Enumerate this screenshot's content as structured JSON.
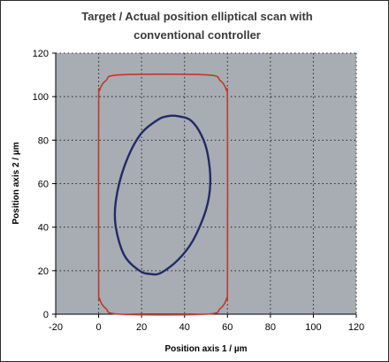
{
  "chart_data": {
    "type": "line",
    "title_lines": [
      "Target / Actual position elliptical scan with",
      "conventional controller"
    ],
    "xlabel": "Position axis 1 / µm",
    "ylabel": "Position axis 2 / µm",
    "xlim": [
      -20,
      120
    ],
    "ylim": [
      0,
      120
    ],
    "xticks": [
      -20,
      0,
      20,
      40,
      60,
      80,
      100,
      120
    ],
    "yticks": [
      0,
      20,
      40,
      60,
      80,
      100,
      120
    ],
    "grid": true,
    "legend": "none",
    "colors": {
      "plot_background": "#a7adb2",
      "gridline": "#262626",
      "outer_trace": "#c0392b",
      "inner_trace": "#232a66"
    },
    "series": [
      {
        "shape": "rounded-rectangle",
        "color": "#c0392b",
        "x": [
          10,
          50,
          56.5,
          59.5,
          60,
          60,
          59.5,
          56.5,
          50,
          10,
          3.5,
          0.5,
          0,
          0,
          0.5,
          3.5,
          10
        ],
        "y": [
          0,
          0,
          2.5,
          7,
          15,
          95,
          103,
          107.5,
          110,
          110,
          107.5,
          103,
          95,
          15,
          7,
          2.5,
          0
        ]
      },
      {
        "shape": "tilted-ellipse",
        "color": "#232a66",
        "x": [
          52,
          50.9,
          48,
          43,
          37,
          32,
          27,
          19,
          12,
          8,
          8,
          12,
          19,
          24,
          29,
          37,
          44,
          50,
          52
        ],
        "y": [
          60,
          73,
          82,
          89,
          91,
          91,
          89,
          82,
          68,
          52,
          40,
          27,
          20,
          18.5,
          19,
          25,
          34,
          48,
          60
        ]
      }
    ]
  }
}
